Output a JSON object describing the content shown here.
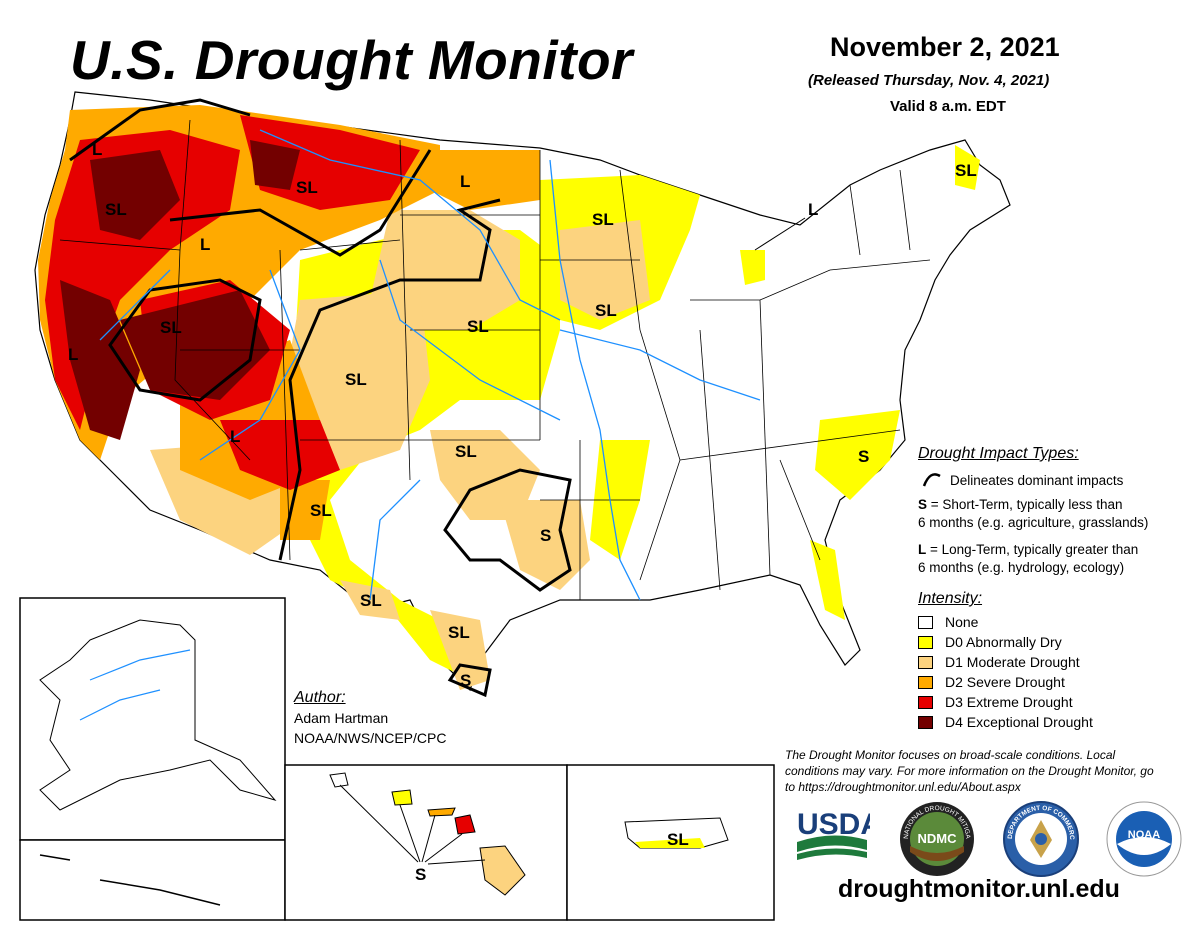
{
  "title": "U.S. Drought Monitor",
  "date": "November 2, 2021",
  "released": "(Released Thursday, Nov. 4, 2021)",
  "valid": "Valid 8 a.m. EDT",
  "impact_legend": {
    "title": "Drought Impact Types:",
    "line_desc": "Delineates dominant impacts",
    "short_key": "S",
    "short_desc": " = Short-Term, typically less than",
    "short_desc2": "6 months (e.g. agriculture, grasslands)",
    "long_key": "L",
    "long_desc": " = Long-Term, typically greater than",
    "long_desc2": "6 months (e.g. hydrology, ecology)"
  },
  "intensity_legend": {
    "title": "Intensity:",
    "items": [
      {
        "label": "None",
        "color": "#ffffff"
      },
      {
        "label": "D0 Abnormally Dry",
        "color": "#ffff00"
      },
      {
        "label": "D1 Moderate Drought",
        "color": "#fcd37f"
      },
      {
        "label": "D2 Severe Drought",
        "color": "#ffaa00"
      },
      {
        "label": "D3 Extreme Drought",
        "color": "#e60000"
      },
      {
        "label": "D4 Exceptional Drought",
        "color": "#730000"
      }
    ]
  },
  "map_labels": [
    "L",
    "SL",
    "SL",
    "L",
    "L",
    "SL",
    "L",
    "SL",
    "L",
    "SL",
    "SL",
    "SL",
    "SL",
    "SL",
    "L",
    "SL",
    "S",
    "S",
    "SL",
    "SL",
    "S",
    "SL",
    "S",
    "S"
  ],
  "author": {
    "heading": "Author:",
    "name": "Adam Hartman",
    "org": "NOAA/NWS/NCEP/CPC"
  },
  "disclaimer": "The Drought Monitor focuses on broad-scale conditions. Local conditions may vary. For more information on the Drought Monitor, go to https://droughtmonitor.unl.edu/About.aspx",
  "website": "droughtmonitor.unl.edu",
  "logos": {
    "usda": "USDA",
    "ndmc": "NDMC",
    "ndmc_ring": "NATIONAL DROUGHT MITIGATION CENTER",
    "doc_ring": "DEPARTMENT OF COMMERCE",
    "noaa": "NOAA"
  }
}
